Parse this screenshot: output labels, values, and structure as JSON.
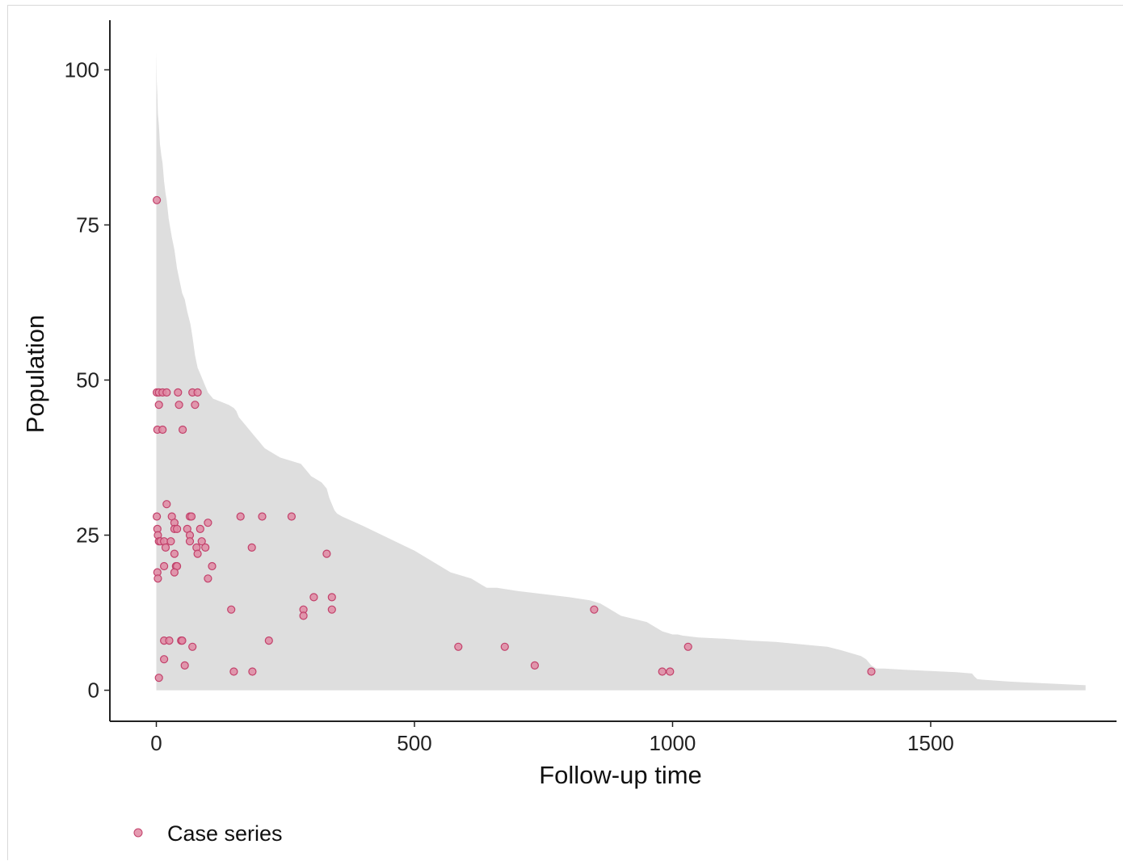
{
  "chart_data": {
    "type": "scatter",
    "xlabel": "Follow-up time",
    "ylabel": "Population",
    "xlim": [
      -90,
      1860
    ],
    "ylim": [
      -5,
      108
    ],
    "x_ticks": [
      0,
      500,
      1000,
      1500
    ],
    "y_ticks": [
      0,
      25,
      50,
      75,
      100
    ],
    "grid": false,
    "legend_position": "bottom-left",
    "colors": {
      "area_fill": "#dedede",
      "point_fill": "#e08aa3",
      "point_stroke": "#c2416b",
      "axis": "#222222"
    },
    "area": {
      "name": "",
      "x": [
        0,
        1,
        2,
        3,
        5,
        7,
        10,
        12,
        15,
        18,
        20,
        24,
        28,
        30,
        35,
        40,
        45,
        50,
        55,
        60,
        63,
        66,
        70,
        75,
        80,
        85,
        90,
        95,
        100,
        110,
        125,
        140,
        150,
        155,
        160,
        170,
        180,
        190,
        200,
        205,
        210,
        220,
        230,
        240,
        260,
        280,
        290,
        300,
        310,
        320,
        330,
        335,
        340,
        345,
        350,
        360,
        400,
        450,
        500,
        540,
        570,
        610,
        630,
        640,
        660,
        700,
        800,
        840,
        860,
        870,
        900,
        950,
        980,
        1000,
        1010,
        1020,
        1050,
        1100,
        1150,
        1200,
        1300,
        1325,
        1345,
        1365,
        1375,
        1385,
        1395,
        1400,
        1410,
        1450,
        1500,
        1550,
        1580,
        1585,
        1590,
        1600,
        1650,
        1700,
        1750,
        1800
      ],
      "y": [
        103,
        98,
        96,
        93,
        91,
        88,
        86,
        85,
        82,
        80,
        79,
        76,
        74,
        73,
        71,
        68,
        66,
        64,
        63,
        61,
        60,
        59,
        57,
        54,
        52,
        51,
        50,
        49,
        48,
        47,
        46.5,
        46,
        45.5,
        45,
        44,
        43,
        42,
        41,
        40,
        39.5,
        39,
        38.5,
        38,
        37.5,
        37,
        36.5,
        35.5,
        34.5,
        34,
        33.5,
        32.5,
        31,
        30,
        29,
        28.5,
        28,
        26.5,
        24.5,
        22.5,
        20.5,
        19,
        18,
        17,
        16.5,
        16.5,
        16,
        15,
        14.5,
        14,
        13.5,
        12,
        11,
        9.5,
        9,
        9,
        8.8,
        8.5,
        8.3,
        8,
        7.8,
        7,
        6.5,
        6,
        5.5,
        5,
        4,
        3.5,
        3.5,
        3.5,
        3.3,
        3.1,
        2.9,
        2.7,
        2.2,
        1.8,
        1.7,
        1.4,
        1.2,
        1.0,
        0.8
      ]
    },
    "series": [
      {
        "name": "Case series",
        "points": [
          [
            1,
            79
          ],
          [
            1,
            48
          ],
          [
            5,
            48
          ],
          [
            12,
            48
          ],
          [
            20,
            48
          ],
          [
            42,
            48
          ],
          [
            70,
            48
          ],
          [
            80,
            48
          ],
          [
            5,
            46
          ],
          [
            44,
            46
          ],
          [
            75,
            46
          ],
          [
            2,
            42
          ],
          [
            12,
            42
          ],
          [
            51,
            42
          ],
          [
            20,
            30
          ],
          [
            1,
            28
          ],
          [
            30,
            28
          ],
          [
            65,
            28
          ],
          [
            68,
            28
          ],
          [
            163,
            28
          ],
          [
            205,
            28
          ],
          [
            262,
            28
          ],
          [
            35,
            27
          ],
          [
            100,
            27
          ],
          [
            2,
            26
          ],
          [
            35,
            26
          ],
          [
            40,
            26
          ],
          [
            60,
            26
          ],
          [
            85,
            26
          ],
          [
            3,
            25
          ],
          [
            65,
            25
          ],
          [
            5,
            24
          ],
          [
            8,
            24
          ],
          [
            15,
            24
          ],
          [
            28,
            24
          ],
          [
            65,
            24
          ],
          [
            88,
            24
          ],
          [
            18,
            23
          ],
          [
            78,
            23
          ],
          [
            95,
            23
          ],
          [
            185,
            23
          ],
          [
            35,
            22
          ],
          [
            80,
            22
          ],
          [
            330,
            22
          ],
          [
            15,
            20
          ],
          [
            38,
            20
          ],
          [
            40,
            20
          ],
          [
            108,
            20
          ],
          [
            35,
            19
          ],
          [
            2,
            19
          ],
          [
            3,
            18
          ],
          [
            100,
            18
          ],
          [
            145,
            13
          ],
          [
            285,
            13
          ],
          [
            340,
            13
          ],
          [
            848,
            13
          ],
          [
            285,
            12
          ],
          [
            305,
            15
          ],
          [
            340,
            15
          ],
          [
            15,
            8
          ],
          [
            25,
            8
          ],
          [
            48,
            8
          ],
          [
            50,
            8
          ],
          [
            218,
            8
          ],
          [
            70,
            7
          ],
          [
            585,
            7
          ],
          [
            675,
            7
          ],
          [
            1030,
            7
          ],
          [
            15,
            5
          ],
          [
            55,
            4
          ],
          [
            733,
            4
          ],
          [
            150,
            3
          ],
          [
            186,
            3
          ],
          [
            980,
            3
          ],
          [
            995,
            3
          ],
          [
            1385,
            3
          ],
          [
            5,
            2
          ]
        ]
      }
    ]
  },
  "legend": {
    "label": "Case series"
  }
}
